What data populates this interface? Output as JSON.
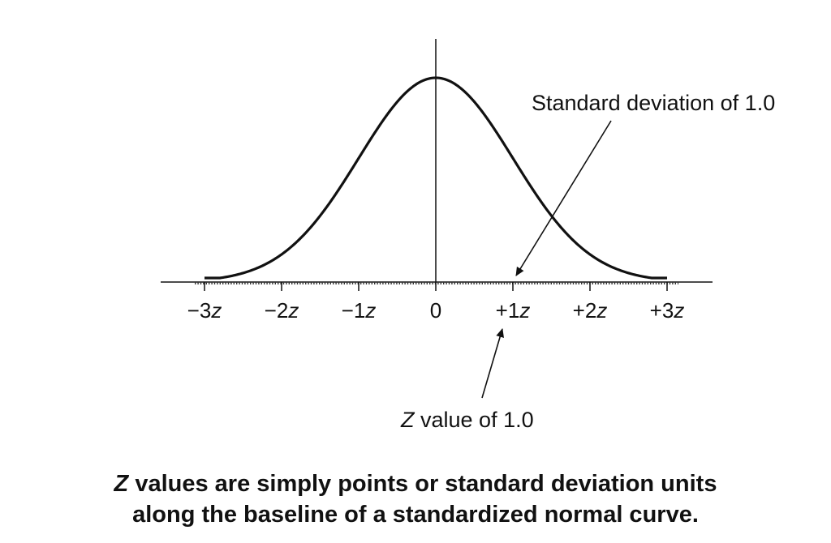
{
  "diagram": {
    "tick_labels": [
      "−3",
      "−2",
      "−1",
      "0",
      "+1",
      "+2",
      "+3"
    ],
    "tick_suffix": "z",
    "annotation_top": "Standard deviation of 1.0",
    "annotation_bottom_lead": "Z",
    "annotation_bottom_rest": " value of 1.0"
  },
  "caption": {
    "line1_lead": "Z",
    "line1_rest": " values are simply points or standard deviation units",
    "line2": "along the baseline of a standardized normal curve."
  },
  "chart_data": {
    "type": "line",
    "x": [
      -3,
      -2,
      -1,
      0,
      1,
      2,
      3
    ],
    "xlim": [
      -3,
      3
    ],
    "grid": false
  }
}
